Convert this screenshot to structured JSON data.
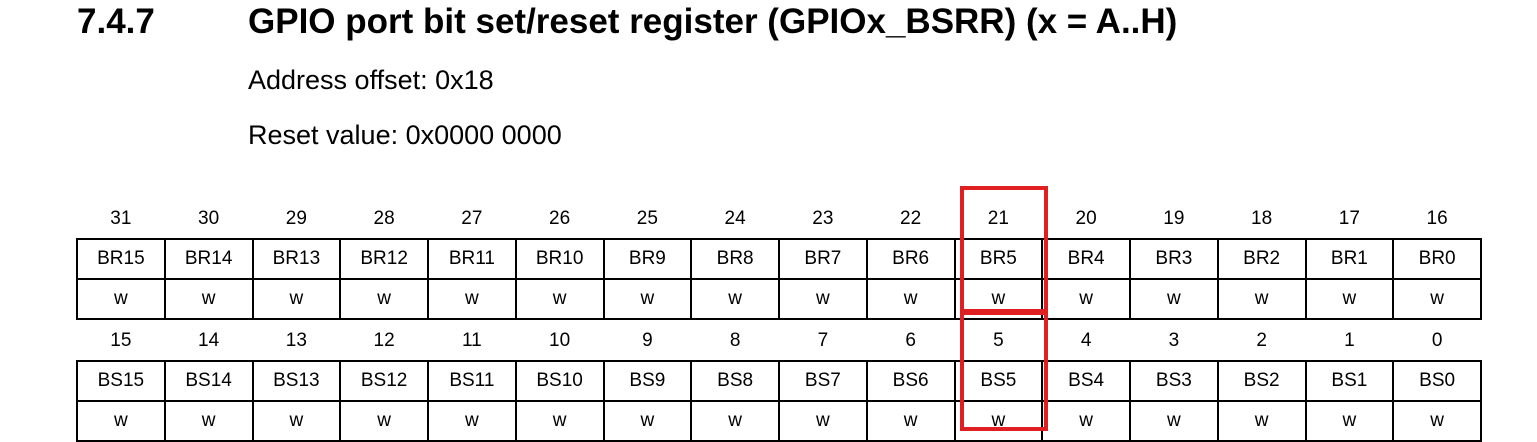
{
  "heading": {
    "number": "7.4.7",
    "title": "GPIO port bit set/reset register (GPIOx_BSRR) (x = A..H)"
  },
  "meta": {
    "address_offset": "Address offset: 0x18",
    "reset_value": "Reset value: 0x0000 0000"
  },
  "register": {
    "upper": {
      "bits": [
        "31",
        "30",
        "29",
        "28",
        "27",
        "26",
        "25",
        "24",
        "23",
        "22",
        "21",
        "20",
        "19",
        "18",
        "17",
        "16"
      ],
      "fields": [
        "BR15",
        "BR14",
        "BR13",
        "BR12",
        "BR11",
        "BR10",
        "BR9",
        "BR8",
        "BR7",
        "BR6",
        "BR5",
        "BR4",
        "BR3",
        "BR2",
        "BR1",
        "BR0"
      ],
      "access": [
        "w",
        "w",
        "w",
        "w",
        "w",
        "w",
        "w",
        "w",
        "w",
        "w",
        "w",
        "w",
        "w",
        "w",
        "w",
        "w"
      ]
    },
    "lower": {
      "bits": [
        "15",
        "14",
        "13",
        "12",
        "11",
        "10",
        "9",
        "8",
        "7",
        "6",
        "5",
        "4",
        "3",
        "2",
        "1",
        "0"
      ],
      "fields": [
        "BS15",
        "BS14",
        "BS13",
        "BS12",
        "BS11",
        "BS10",
        "BS9",
        "BS8",
        "BS7",
        "BS6",
        "BS5",
        "BS4",
        "BS3",
        "BS2",
        "BS1",
        "BS0"
      ],
      "access": [
        "w",
        "w",
        "w",
        "w",
        "w",
        "w",
        "w",
        "w",
        "w",
        "w",
        "w",
        "w",
        "w",
        "w",
        "w",
        "w"
      ]
    }
  },
  "highlight": {
    "color": "#e02020",
    "fields": [
      "BR5",
      "BS5"
    ]
  }
}
